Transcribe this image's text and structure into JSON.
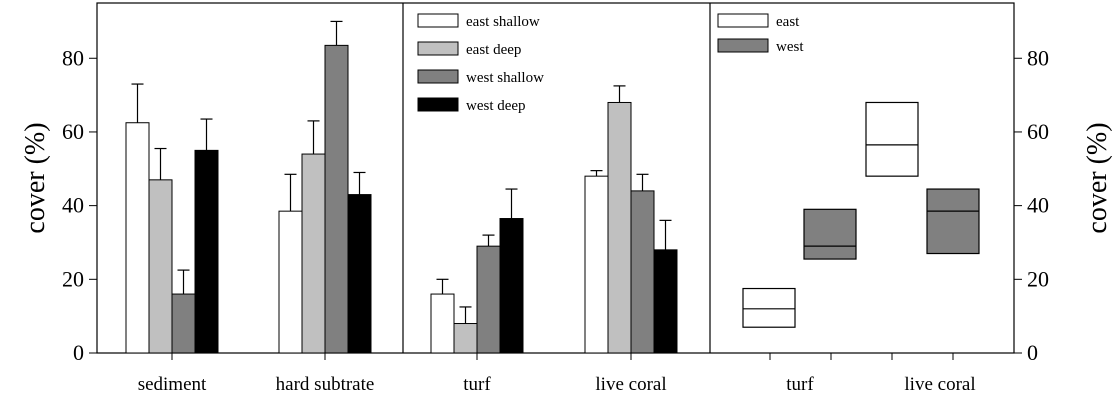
{
  "chart_data": [
    {
      "type": "bar",
      "panel": "left",
      "ylabel": "cover (%)",
      "ylim": [
        0,
        95
      ],
      "yticks": [
        0,
        20,
        40,
        60,
        80
      ],
      "categories": [
        "sediment",
        "hard subtrate"
      ],
      "series": [
        {
          "name": "east shallow",
          "color": "#ffffff",
          "values": [
            62.5,
            38.5
          ],
          "errors": [
            10.5,
            10.0
          ]
        },
        {
          "name": "east deep",
          "color": "#c0c0c0",
          "values": [
            47,
            54
          ],
          "errors": [
            8.5,
            9.0
          ]
        },
        {
          "name": "west shallow",
          "color": "#808080",
          "values": [
            16,
            83.5
          ],
          "errors": [
            6.5,
            6.5
          ]
        },
        {
          "name": "west deep",
          "color": "#000000",
          "values": [
            55,
            43
          ],
          "errors": [
            8.5,
            6.0
          ]
        }
      ]
    },
    {
      "type": "bar",
      "panel": "middle",
      "ylim": [
        0,
        95
      ],
      "categories": [
        "turf",
        "live coral"
      ],
      "legend_position": "top",
      "series": [
        {
          "name": "east shallow",
          "color": "#ffffff",
          "values": [
            16,
            48
          ],
          "errors": [
            4.0,
            1.5
          ]
        },
        {
          "name": "east deep",
          "color": "#c0c0c0",
          "values": [
            8,
            68
          ],
          "errors": [
            4.5,
            4.5
          ]
        },
        {
          "name": "west shallow",
          "color": "#808080",
          "values": [
            29,
            44
          ],
          "errors": [
            3.0,
            4.5
          ]
        },
        {
          "name": "west deep",
          "color": "#000000",
          "values": [
            36.5,
            28
          ],
          "errors": [
            8.0,
            8.0
          ]
        }
      ]
    },
    {
      "type": "box",
      "panel": "right",
      "ylabel": "cover (%)",
      "ylim": [
        0,
        95
      ],
      "yticks": [
        0,
        20,
        40,
        60,
        80
      ],
      "categories": [
        "turf",
        "live coral"
      ],
      "legend_position": "top-left",
      "series": [
        {
          "name": "east",
          "color": "#ffffff",
          "boxes": [
            {
              "low": 7,
              "median": 12,
              "high": 17.5
            },
            {
              "low": 48,
              "median": 56.5,
              "high": 68
            }
          ]
        },
        {
          "name": "west",
          "color": "#808080",
          "boxes": [
            {
              "low": 25.5,
              "median": 29,
              "high": 39
            },
            {
              "low": 27,
              "median": 38.5,
              "high": 44.5
            }
          ]
        }
      ]
    }
  ]
}
